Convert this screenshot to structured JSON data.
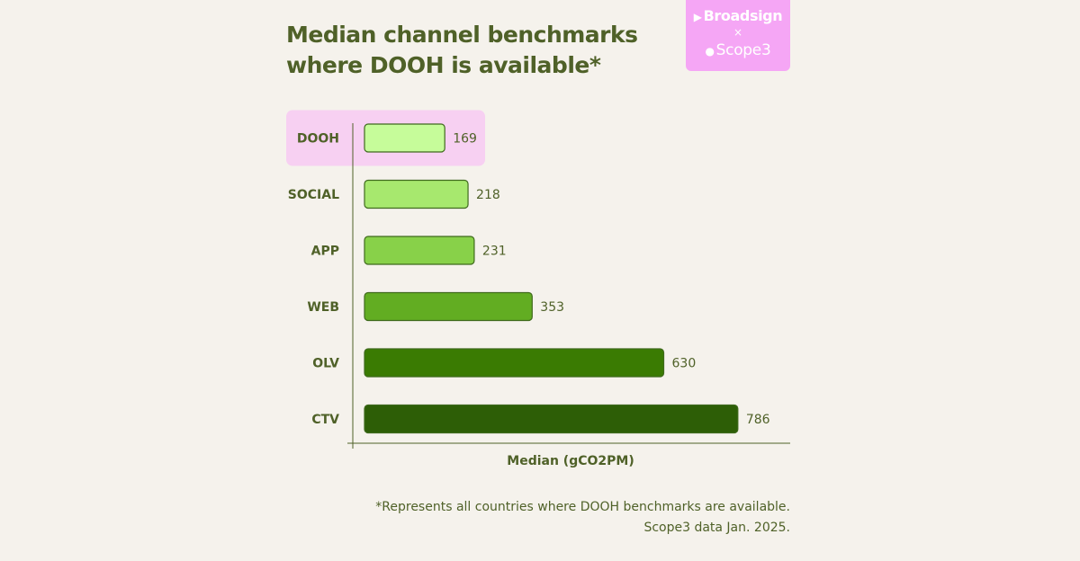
{
  "logo": {
    "brand1": "Broadsign",
    "separator": "×",
    "brand2": "Scope3",
    "brand1_icon": "play-triangle-icon",
    "brand2_icon": "scope3-dots-icon"
  },
  "title_lines": [
    "Median channel benchmarks",
    "where DOOH is available*"
  ],
  "footnote": {
    "line1": "*Represents all countries where DOOH benchmarks are available.",
    "line2": "Scope3 data Jan. 2025."
  },
  "colors": {
    "text": "#4f6128",
    "highlight": "#f7d0f2",
    "bars": [
      "#c6fc9a",
      "#a7e86e",
      "#88d149",
      "#62ad22",
      "#3a7b02",
      "#2d5e06"
    ],
    "bar_border": "#3f6a1d"
  },
  "chart_data": {
    "type": "bar",
    "orientation": "horizontal",
    "categories": [
      "DOOH",
      "SOCIAL",
      "APP",
      "WEB",
      "OLV",
      "CTV"
    ],
    "values": [
      169,
      218,
      231,
      353,
      630,
      786
    ],
    "highlighted_category": "DOOH",
    "title": "Median channel benchmarks where DOOH is available*",
    "xlabel": "Median (gCO2PM)",
    "ylabel": "",
    "xlim": [
      0,
      900
    ],
    "grid": false,
    "data_labels": true
  }
}
